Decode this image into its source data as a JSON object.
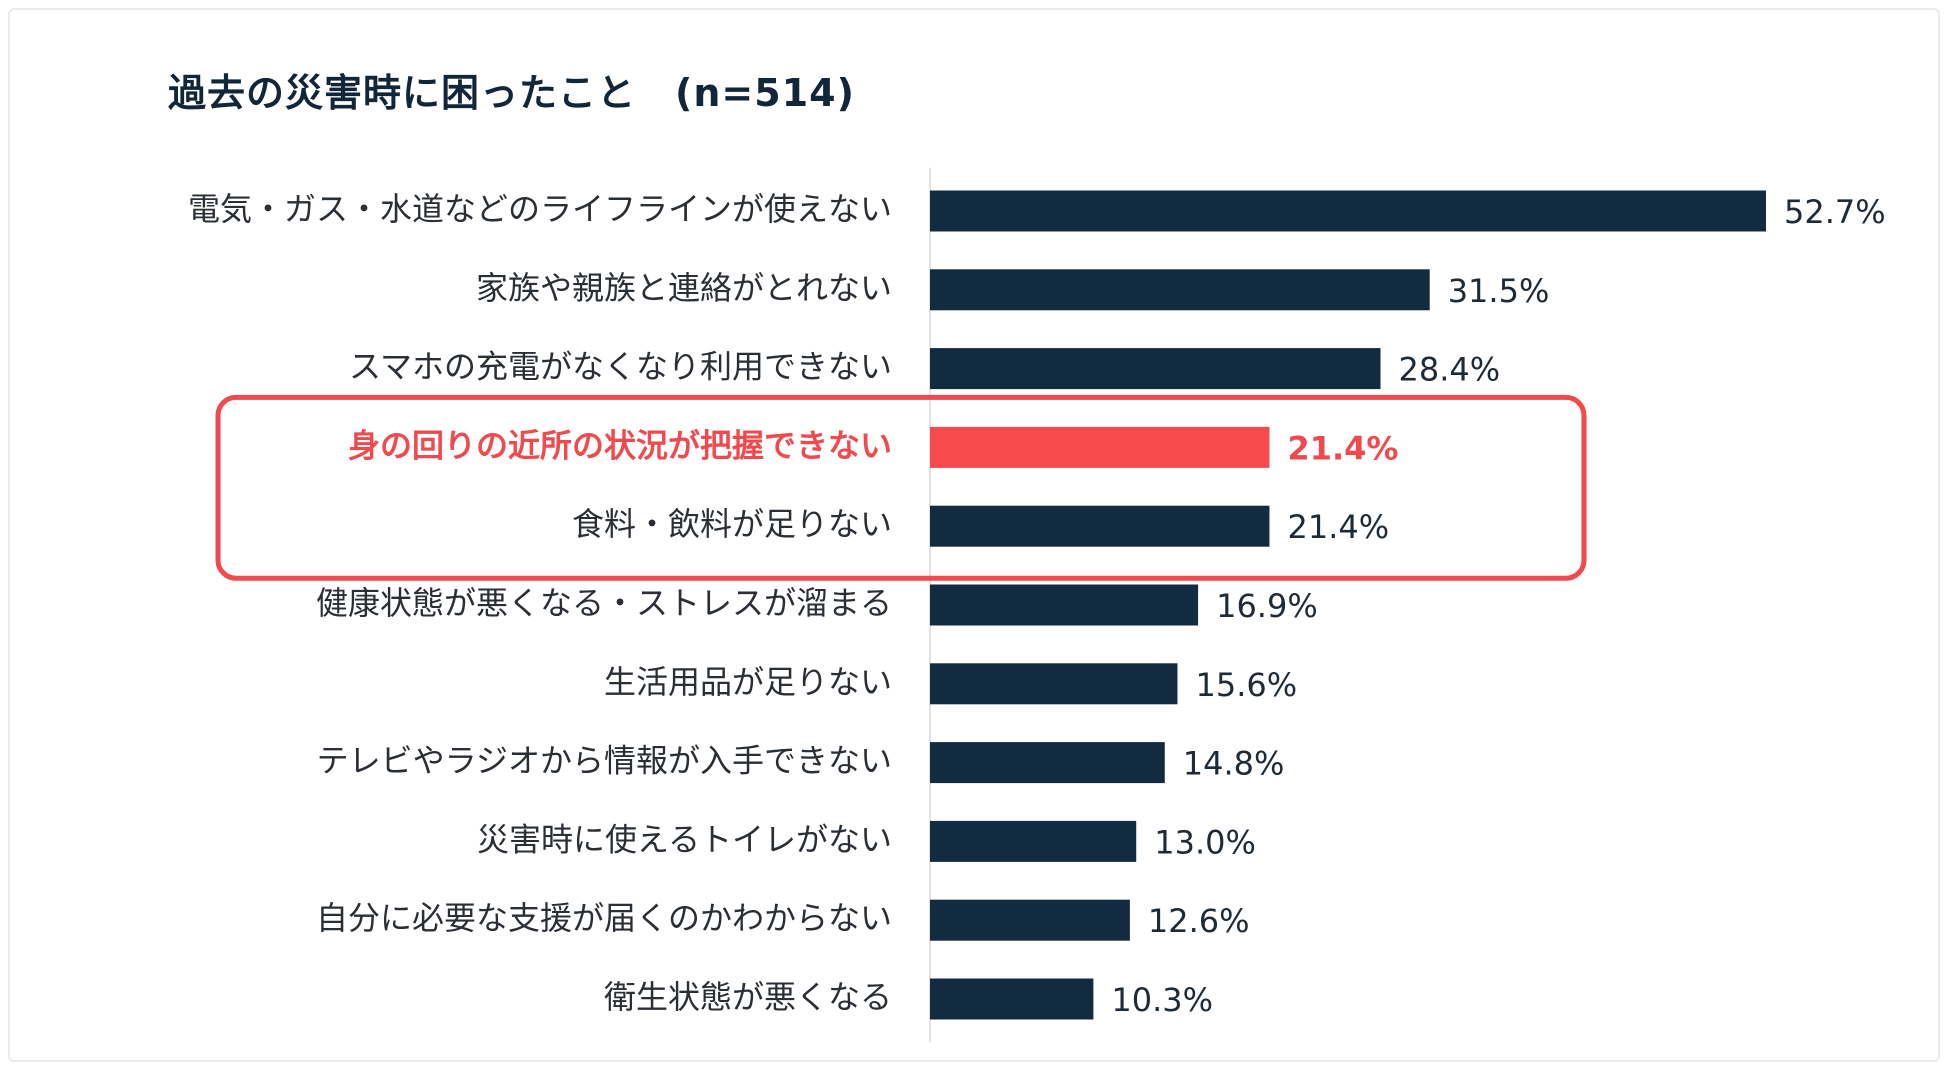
{
  "chart_data": {
    "type": "bar",
    "orientation": "horizontal",
    "title": "過去の災害時に困ったこと　(n=514)",
    "categories": [
      "電気・ガス・水道などのライフラインが使えない",
      "家族や親族と連絡がとれない",
      "スマホの充電がなくなり利用できない",
      "身の回りの近所の状況が把握できない",
      "食料・飲料が足りない",
      "健康状態が悪くなる・ストレスが溜まる",
      "生活用品が足りない",
      "テレビやラジオから情報が入手できない",
      "災害時に使えるトイレがない",
      "自分に必要な支援が届くのかわからない",
      "衛生状態が悪くなる"
    ],
    "values": [
      52.7,
      31.5,
      28.4,
      21.4,
      21.4,
      16.9,
      15.6,
      14.8,
      13.0,
      12.6,
      10.3
    ],
    "value_labels": [
      "52.7%",
      "31.5%",
      "28.4%",
      "21.4%",
      "21.4%",
      "16.9%",
      "15.6%",
      "14.8%",
      "13.0%",
      "12.6%",
      "10.3%"
    ],
    "unit": "%",
    "highlight_index": 3,
    "boxed_indices": [
      3,
      4
    ],
    "xlim": [
      0,
      52.7
    ],
    "grid": false,
    "legend": "none"
  },
  "colors": {
    "bar": "#122b40",
    "highlight": "#f74a4e",
    "highlight_text": "#ef4a4e",
    "box_border": "#ef4a4e",
    "title": "#12263a"
  }
}
